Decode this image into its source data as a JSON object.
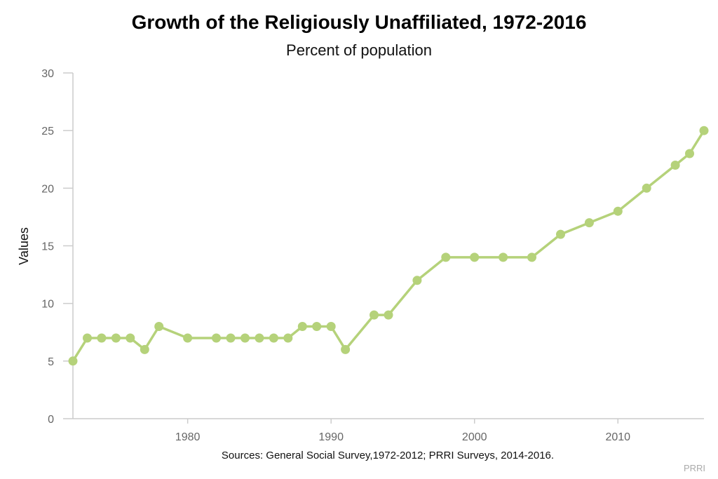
{
  "colors": {
    "series": "#b5d27a",
    "axis": "#cccccc",
    "tick_text": "#666666"
  },
  "chart_data": {
    "type": "line",
    "title": "Growth of the Religiously Unaffiliated, 1972-2016",
    "subtitle": "Percent of population",
    "xlabel": "",
    "ylabel": "Values",
    "xlim": [
      1972,
      2016
    ],
    "ylim": [
      0,
      30
    ],
    "x_ticks": [
      1980,
      1990,
      2000,
      2010
    ],
    "y_ticks": [
      0,
      5,
      10,
      15,
      20,
      25,
      30
    ],
    "grid": false,
    "legend": "none",
    "series": [
      {
        "name": "Religiously Unaffiliated",
        "x": [
          1972,
          1973,
          1974,
          1975,
          1976,
          1977,
          1978,
          1980,
          1982,
          1983,
          1984,
          1985,
          1986,
          1987,
          1988,
          1989,
          1990,
          1991,
          1993,
          1994,
          1996,
          1998,
          2000,
          2002,
          2004,
          2006,
          2008,
          2010,
          2012,
          2014,
          2015,
          2016
        ],
        "values": [
          5,
          7,
          7,
          7,
          7,
          6,
          8,
          7,
          7,
          7,
          7,
          7,
          7,
          7,
          8,
          8,
          8,
          6,
          9,
          9,
          12,
          14,
          14,
          14,
          14,
          16,
          17,
          18,
          20,
          22,
          23,
          25
        ]
      }
    ]
  },
  "footer": {
    "sources": "Sources: General Social Survey,1972-2012; PRRI Surveys, 2014-2016.",
    "credit": "PRRI"
  }
}
